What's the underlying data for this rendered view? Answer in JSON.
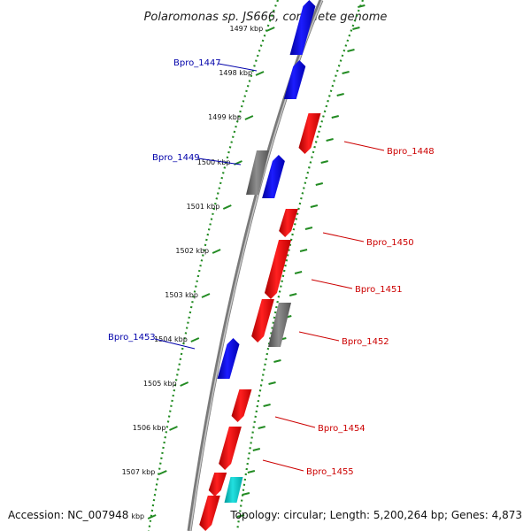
{
  "title": "Polaromonas sp. JS666, complete genome",
  "footer": {
    "accession": "Accession: NC_007948",
    "topology": "Topology: circular; Length: 5,200,264 bp; Genes: 4,873"
  },
  "colors": {
    "forward_label": "#0000aa",
    "reverse_label": "#cc0000",
    "tick": "#228b22",
    "backbone": "#888888"
  },
  "ticks": [
    "1497 kbp",
    "1498 kbp",
    "1499 kbp",
    "1500 kbp",
    "1501 kbp",
    "1502 kbp",
    "1503 kbp",
    "1504 kbp",
    "1505 kbp",
    "1506 kbp",
    "1507 kbp",
    "kbp"
  ],
  "gene_labels": [
    {
      "name": "Bpro_1447",
      "strand": "forward"
    },
    {
      "name": "Bpro_1448",
      "strand": "reverse"
    },
    {
      "name": "Bpro_1449",
      "strand": "forward"
    },
    {
      "name": "Bpro_1450",
      "strand": "reverse"
    },
    {
      "name": "Bpro_1451",
      "strand": "reverse"
    },
    {
      "name": "Bpro_1452",
      "strand": "reverse"
    },
    {
      "name": "Bpro_1453",
      "strand": "forward"
    },
    {
      "name": "Bpro_1454",
      "strand": "reverse"
    },
    {
      "name": "Bpro_1455",
      "strand": "reverse"
    }
  ],
  "features": [
    {
      "color": "blue",
      "dir": "up"
    },
    {
      "color": "blue",
      "dir": "up"
    },
    {
      "color": "red",
      "dir": "down"
    },
    {
      "color": "gray",
      "dir": "none"
    },
    {
      "color": "blue",
      "dir": "up"
    },
    {
      "color": "red",
      "dir": "down"
    },
    {
      "color": "red",
      "dir": "down"
    },
    {
      "color": "red",
      "dir": "down"
    },
    {
      "color": "gray",
      "dir": "none"
    },
    {
      "color": "blue",
      "dir": "up"
    },
    {
      "color": "red",
      "dir": "down"
    },
    {
      "color": "red",
      "dir": "down"
    },
    {
      "color": "red",
      "dir": "down"
    },
    {
      "color": "cyan",
      "dir": "none"
    },
    {
      "color": "red",
      "dir": "down"
    }
  ]
}
